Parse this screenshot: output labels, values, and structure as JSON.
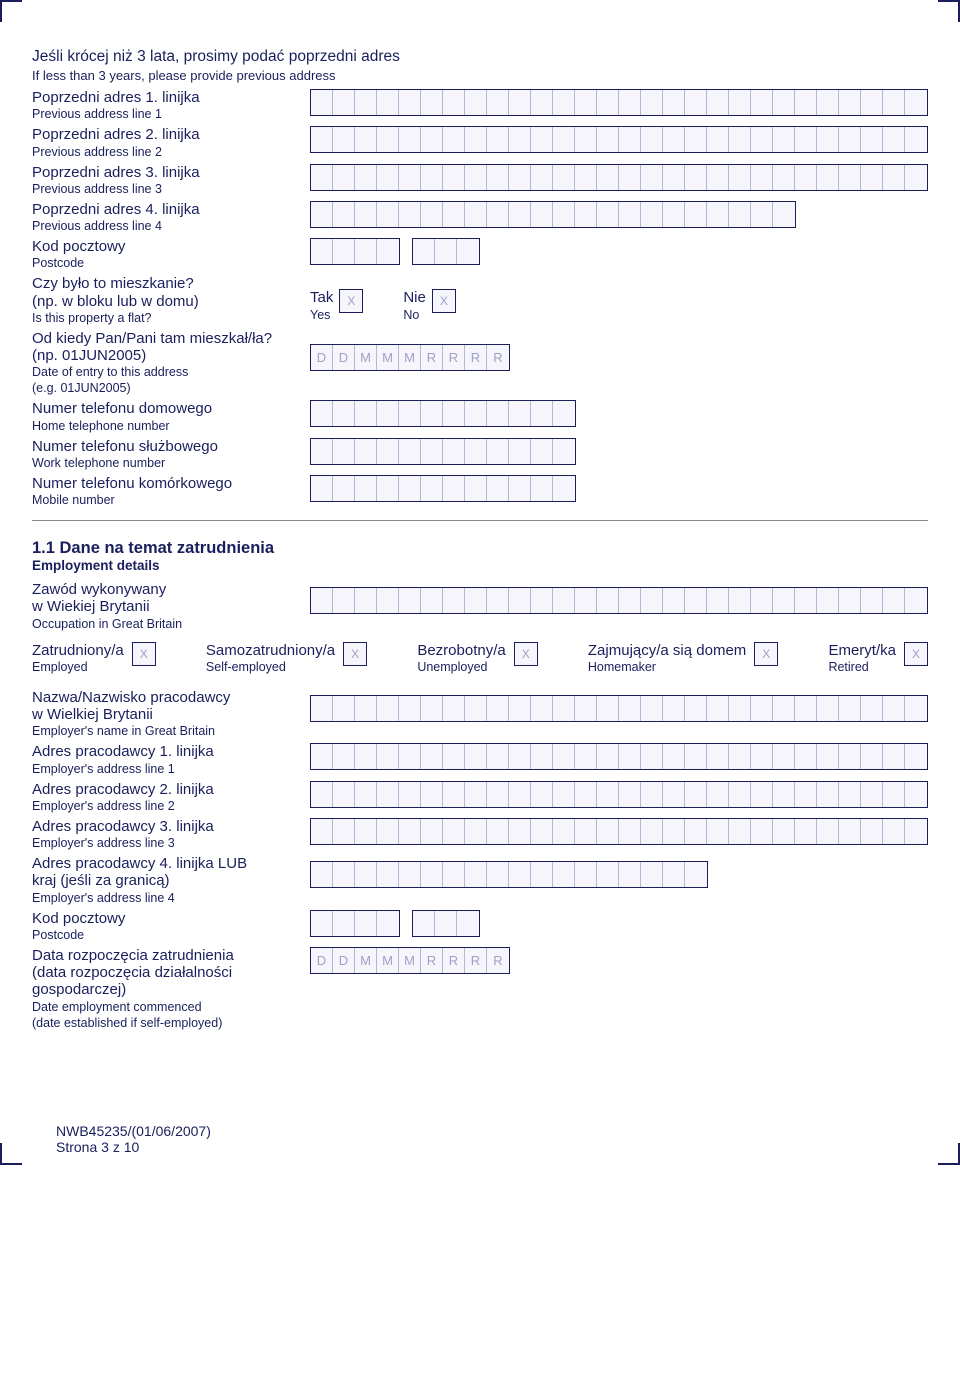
{
  "colors": {
    "primary": "#1a1f5c",
    "box_bg": "#f5f5fb",
    "cell_divider": "#b5b5d6",
    "placeholder": "#a0a0c8"
  },
  "typography": {
    "pl_fontsize": 15,
    "en_fontsize": 12.5,
    "section_title_fontsize": 16.5
  },
  "cell": {
    "width": 22,
    "height": 25
  },
  "intro": {
    "pl": "Jeśli krócej niż 3 lata, prosimy podać poprzedni adres",
    "en": "If less than 3 years, please provide previous address"
  },
  "prev_addr": {
    "l1": {
      "pl": "Poprzedni adres 1. linijka",
      "en": "Previous address line 1",
      "cells": 28
    },
    "l2": {
      "pl": "Poprzedni adres 2. linijka",
      "en": "Previous address line 2",
      "cells": 28
    },
    "l3": {
      "pl": "Poprzedni adres 3. linijka",
      "en": "Previous address line 3",
      "cells": 28
    },
    "l4": {
      "pl": "Poprzedni adres 4. linijka",
      "en": "Previous address line 4",
      "cells": 22
    },
    "postcode": {
      "pl": "Kod pocztowy",
      "en": "Postcode",
      "group1": 4,
      "group2": 3
    }
  },
  "is_flat": {
    "pl1": "Czy było to mieszkanie?",
    "pl2": "(np. w bloku lub w domu)",
    "en": "Is this property a flat?",
    "yes_pl": "Tak",
    "yes_en": "Yes",
    "no_pl": "Nie",
    "no_en": "No",
    "check_placeholder": "X"
  },
  "date_entry": {
    "pl1": "Od kiedy Pan/Pani tam mieszkał/ła?",
    "pl2": "(np. 01JUN2005)",
    "en1": "Date of entry to this address",
    "en2": "(e.g. 01JUN2005)",
    "placeholders": [
      "D",
      "D",
      "M",
      "M",
      "M",
      "R",
      "R",
      "R",
      "R"
    ]
  },
  "home_tel": {
    "pl": "Numer telefonu domowego",
    "en": "Home telephone number",
    "cells": 12
  },
  "work_tel": {
    "pl": "Numer telefonu służbowego",
    "en": "Work telephone number",
    "cells": 12
  },
  "mobile": {
    "pl": "Numer telefonu komórkowego",
    "en": "Mobile number",
    "cells": 12
  },
  "section": {
    "title": "1.1 Dane na temat zatrudnienia",
    "sub": "Employment details"
  },
  "occupation": {
    "pl1": "Zawód wykonywany",
    "pl2": "w Wiekiej Brytanii",
    "en": "Occupation in Great Britain",
    "cells": 28
  },
  "emp_status": {
    "check_placeholder": "X",
    "opts": [
      {
        "pl": "Zatrudniony/a",
        "en": "Employed"
      },
      {
        "pl": "Samozatrudniony/a",
        "en": "Self-employed"
      },
      {
        "pl": "Bezrobotny/a",
        "en": "Unemployed"
      },
      {
        "pl": "Zajmujący/a sią domem",
        "en": "Homemaker"
      },
      {
        "pl": "Emeryt/ka",
        "en": "Retired"
      }
    ]
  },
  "employer": {
    "name": {
      "pl1": "Nazwa/Nazwisko pracodawcy",
      "pl2": "w Wielkiej Brytanii",
      "en": "Employer's name in Great Britain",
      "cells": 28
    },
    "l1": {
      "pl": "Adres pracodawcy 1. linijka",
      "en": "Employer's address line 1",
      "cells": 28
    },
    "l2": {
      "pl": "Adres pracodawcy 2. linijka",
      "en": "Employer's address line 2",
      "cells": 28
    },
    "l3": {
      "pl": "Adres pracodawcy 3. linijka",
      "en": "Employer's address line 3",
      "cells": 28
    },
    "l4": {
      "pl1": "Adres pracodawcy 4. linijka LUB",
      "pl2": "kraj (jeśli za granicą)",
      "en": "Employer's address line 4",
      "cells": 18
    },
    "postcode": {
      "pl": "Kod pocztowy",
      "en": "Postcode",
      "group1": 4,
      "group2": 3
    }
  },
  "emp_date": {
    "pl1": "Data rozpoczęcia zatrudnienia",
    "pl2": "(data rozpoczęcia działalności",
    "pl3": "gospodarczej)",
    "en1": "Date employment commenced",
    "en2": "(date established if self-employed)",
    "placeholders": [
      "D",
      "D",
      "M",
      "M",
      "M",
      "R",
      "R",
      "R",
      "R"
    ]
  },
  "footer": {
    "code": "NWB45235/(01/06/2007)",
    "page": "Strona 3 z 10"
  }
}
